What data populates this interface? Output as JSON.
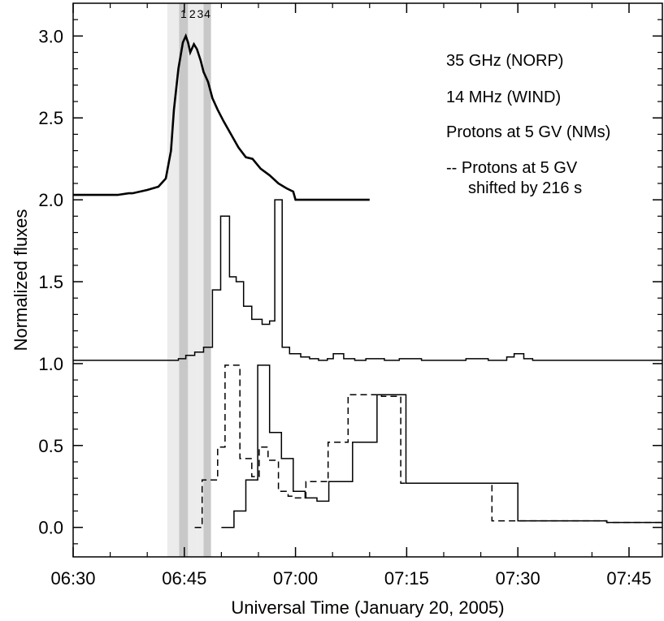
{
  "chart_data": {
    "type": "line",
    "xlabel": "Universal Time (January 20, 2005)",
    "ylabel": "Normalized fluxes",
    "xlim_minutes_utc": [
      390,
      469.5
    ],
    "ylim": [
      -0.18,
      3.2
    ],
    "x_tick_labels": [
      "06:30",
      "06:45",
      "07:00",
      "07:15",
      "07:30",
      "07:45"
    ],
    "x_tick_values_minutes_utc": [
      390,
      405,
      420,
      435,
      450,
      465
    ],
    "y_tick_labels": [
      "0.0",
      "0.5",
      "1.0",
      "1.5",
      "2.0",
      "2.5",
      "3.0"
    ],
    "y_tick_values": [
      0.0,
      0.5,
      1.0,
      1.5,
      2.0,
      2.5,
      3.0
    ],
    "shaded_intervals": [
      {
        "label": "",
        "start": 402.7,
        "end": 404.3,
        "shade": "#ececec"
      },
      {
        "label": "1",
        "start": 404.3,
        "end": 405.5,
        "shade": "#c8c8c8"
      },
      {
        "label": "2",
        "start": 405.5,
        "end": 406.7,
        "shade": "#ececec"
      },
      {
        "label": "3",
        "start": 406.7,
        "end": 407.6,
        "shade": "#ececec"
      },
      {
        "label": "4",
        "start": 407.6,
        "end": 408.6,
        "shade": "#c8c8c8"
      }
    ],
    "legend": [
      "35 GHz (NORP)",
      "14 MHz (WIND)",
      "Protons at 5 GV (NMs)",
      "-- Protons at 5 GV",
      "shifted by 216 s"
    ],
    "series": [
      {
        "style": "solid",
        "step": false,
        "x": [
          390,
          396,
          397.5,
          398,
          400,
          401.5,
          402.5,
          403.2,
          403.6,
          404.2,
          404.8,
          405.2,
          405.5,
          405.8,
          406.3,
          406.7,
          407.2,
          407.6,
          408.2,
          408.8,
          409.5,
          410.3,
          411.3,
          412.3,
          413.3,
          414.2,
          415.3,
          416.5,
          417.7,
          418.8,
          419.7,
          420,
          422.5,
          425.5,
          430
        ],
        "y": [
          2.03,
          2.03,
          2.04,
          2.04,
          2.06,
          2.08,
          2.13,
          2.3,
          2.55,
          2.8,
          2.96,
          3.0,
          2.96,
          2.9,
          2.95,
          2.92,
          2.85,
          2.78,
          2.72,
          2.62,
          2.55,
          2.48,
          2.4,
          2.32,
          2.26,
          2.25,
          2.19,
          2.15,
          2.1,
          2.07,
          2.05,
          2.0,
          2.0,
          2.0,
          2.0
        ]
      },
      {
        "style": "solid",
        "step": true,
        "x": [
          390,
          404.2,
          405.2,
          406.4,
          407.6,
          408.8,
          409.9,
          411.1,
          412.0,
          413.0,
          414.1,
          415.5,
          416.5,
          417.2,
          418.2,
          419.2,
          420.7,
          421.9,
          423.1,
          424.3,
          425.1,
          426.5,
          428.0,
          429.5,
          432.0,
          434.0,
          437.0,
          440.0,
          443.0,
          446.0,
          448.5,
          449.5,
          450.8,
          452.0,
          469.5
        ],
        "y": [
          1.02,
          1.03,
          1.05,
          1.07,
          1.1,
          1.45,
          1.9,
          1.53,
          1.5,
          1.35,
          1.27,
          1.24,
          1.26,
          2.0,
          1.1,
          1.06,
          1.04,
          1.03,
          1.02,
          1.03,
          1.06,
          1.03,
          1.02,
          1.03,
          1.02,
          1.03,
          1.02,
          1.02,
          1.03,
          1.02,
          1.04,
          1.06,
          1.03,
          1.02,
          1.02
        ]
      },
      {
        "style": "solid",
        "step": true,
        "x": [
          410.0,
          411.7,
          413.3,
          414.9,
          416.5,
          418.1,
          419.7,
          421.3,
          422.9,
          424.5,
          426.1,
          427.7,
          429.3,
          431.0,
          434.9,
          438.0,
          446.2,
          450.0,
          454.0,
          459.0,
          462.0,
          469.5
        ],
        "y": [
          0.0,
          0.1,
          0.29,
          0.99,
          0.58,
          0.42,
          0.22,
          0.18,
          0.16,
          0.28,
          0.28,
          0.52,
          0.52,
          0.81,
          0.27,
          0.27,
          0.27,
          0.04,
          0.04,
          0.04,
          0.03,
          0.03
        ]
      },
      {
        "style": "dashed",
        "step": true,
        "x": [
          406.4,
          407.4,
          408.0,
          409.5,
          410.5,
          411.9,
          412.5,
          414.1,
          415.1,
          416.3,
          417.7,
          419.0,
          419.8,
          421.4,
          423.0,
          424.4,
          426.0,
          427.1,
          428.8,
          431.6,
          434.2,
          436.3,
          446.5,
          448.1,
          462.0,
          469.5
        ],
        "y": [
          0.0,
          0.29,
          0.29,
          0.49,
          0.99,
          0.99,
          0.42,
          0.31,
          0.49,
          0.41,
          0.22,
          0.19,
          0.18,
          0.28,
          0.28,
          0.52,
          0.52,
          0.81,
          0.81,
          0.8,
          0.27,
          0.27,
          0.04,
          0.04,
          0.03,
          0.03
        ]
      }
    ]
  }
}
